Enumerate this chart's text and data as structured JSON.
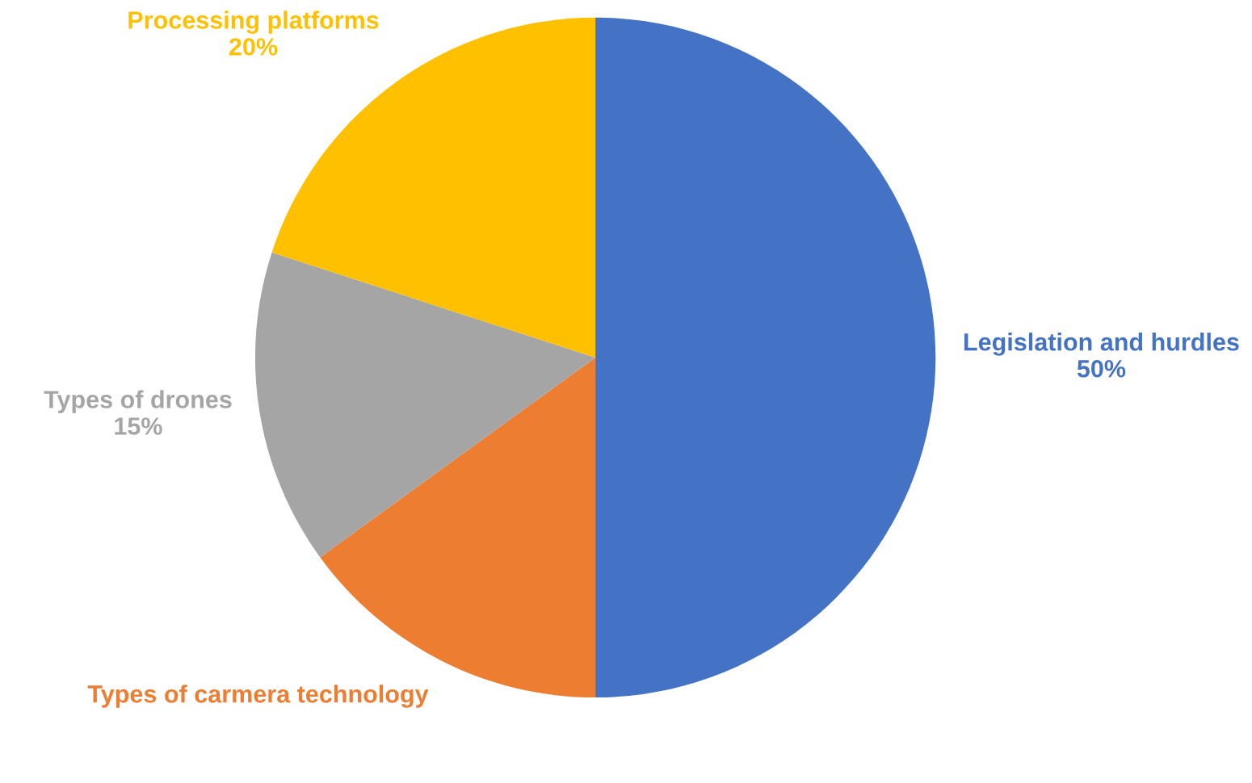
{
  "chart_data": {
    "type": "pie",
    "categories": [
      "Legislation and hurdles",
      "Types of carmera technology",
      "Types of drones",
      "Processing platforms"
    ],
    "values": [
      50,
      15,
      15,
      20
    ],
    "colors": [
      "#4472c4",
      "#ed7d31",
      "#a5a5a5",
      "#ffc000"
    ],
    "value_labels": [
      "50%",
      null,
      "15%",
      "20%"
    ]
  }
}
